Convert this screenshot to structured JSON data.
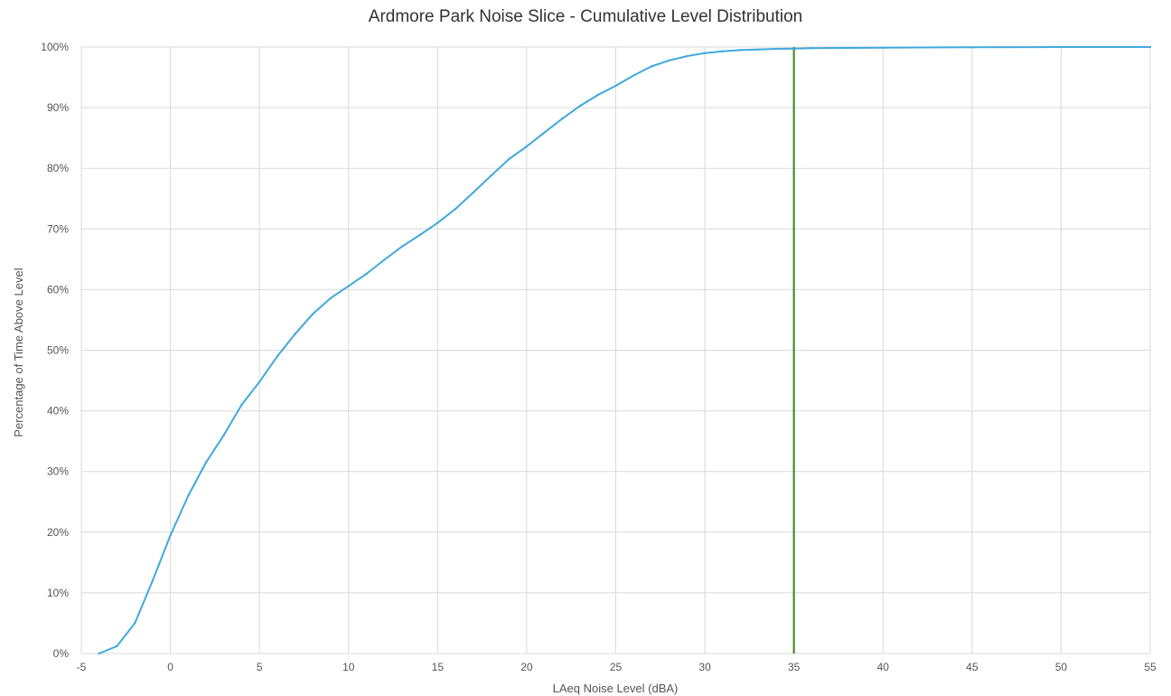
{
  "chart_data": {
    "type": "line",
    "title": "Ardmore Park Noise Slice - Cumulative Level Distribution",
    "xlabel": "LAeq Noise Level (dBA)",
    "ylabel": "Percentage of Time Above Level",
    "xlim": [
      -5,
      55
    ],
    "ylim": [
      0,
      100
    ],
    "x_ticks": [
      -5,
      0,
      5,
      10,
      15,
      20,
      25,
      30,
      35,
      40,
      45,
      50,
      55
    ],
    "y_ticks": [
      0,
      10,
      20,
      30,
      40,
      50,
      60,
      70,
      80,
      90,
      100
    ],
    "x_tick_labels": [
      "-5",
      "0",
      "5",
      "10",
      "15",
      "20",
      "25",
      "30",
      "35",
      "40",
      "45",
      "50",
      "55"
    ],
    "y_tick_labels": [
      "0%",
      "10%",
      "20%",
      "30%",
      "40%",
      "50%",
      "60%",
      "70%",
      "80%",
      "90%",
      "100%"
    ],
    "grid": true,
    "legend": "none",
    "series": [
      {
        "color": "#3fa9dc",
        "x": [
          -4,
          -3,
          -2,
          -1,
          0,
          1,
          2,
          3,
          4,
          5,
          6,
          7,
          8,
          9,
          10,
          11,
          12,
          13,
          14,
          15,
          16,
          17,
          18,
          19,
          20,
          21,
          22,
          23,
          24,
          25,
          26,
          27,
          28,
          29,
          30,
          31,
          32,
          33,
          34,
          35,
          36,
          38,
          40,
          45,
          50,
          55
        ],
        "y": [
          0,
          1.2,
          5,
          12,
          19.5,
          26,
          31.5,
          36,
          41,
          44.8,
          49,
          52.7,
          56,
          58.6,
          60.6,
          62.6,
          64.9,
          67.1,
          69,
          71,
          73.3,
          76,
          78.8,
          81.5,
          83.6,
          85.9,
          88.2,
          90.3,
          92.1,
          93.6,
          95.3,
          96.8,
          97.8,
          98.5,
          99,
          99.3,
          99.5,
          99.6,
          99.7,
          99.75,
          99.8,
          99.85,
          99.9,
          99.95,
          100,
          100
        ]
      }
    ],
    "reference_lines": [
      {
        "orientation": "vertical",
        "x": 35,
        "color": "#4e8a2e"
      }
    ],
    "colors": {
      "grid": "#d9d9d9",
      "text": "#555555",
      "title": "#333333"
    }
  }
}
